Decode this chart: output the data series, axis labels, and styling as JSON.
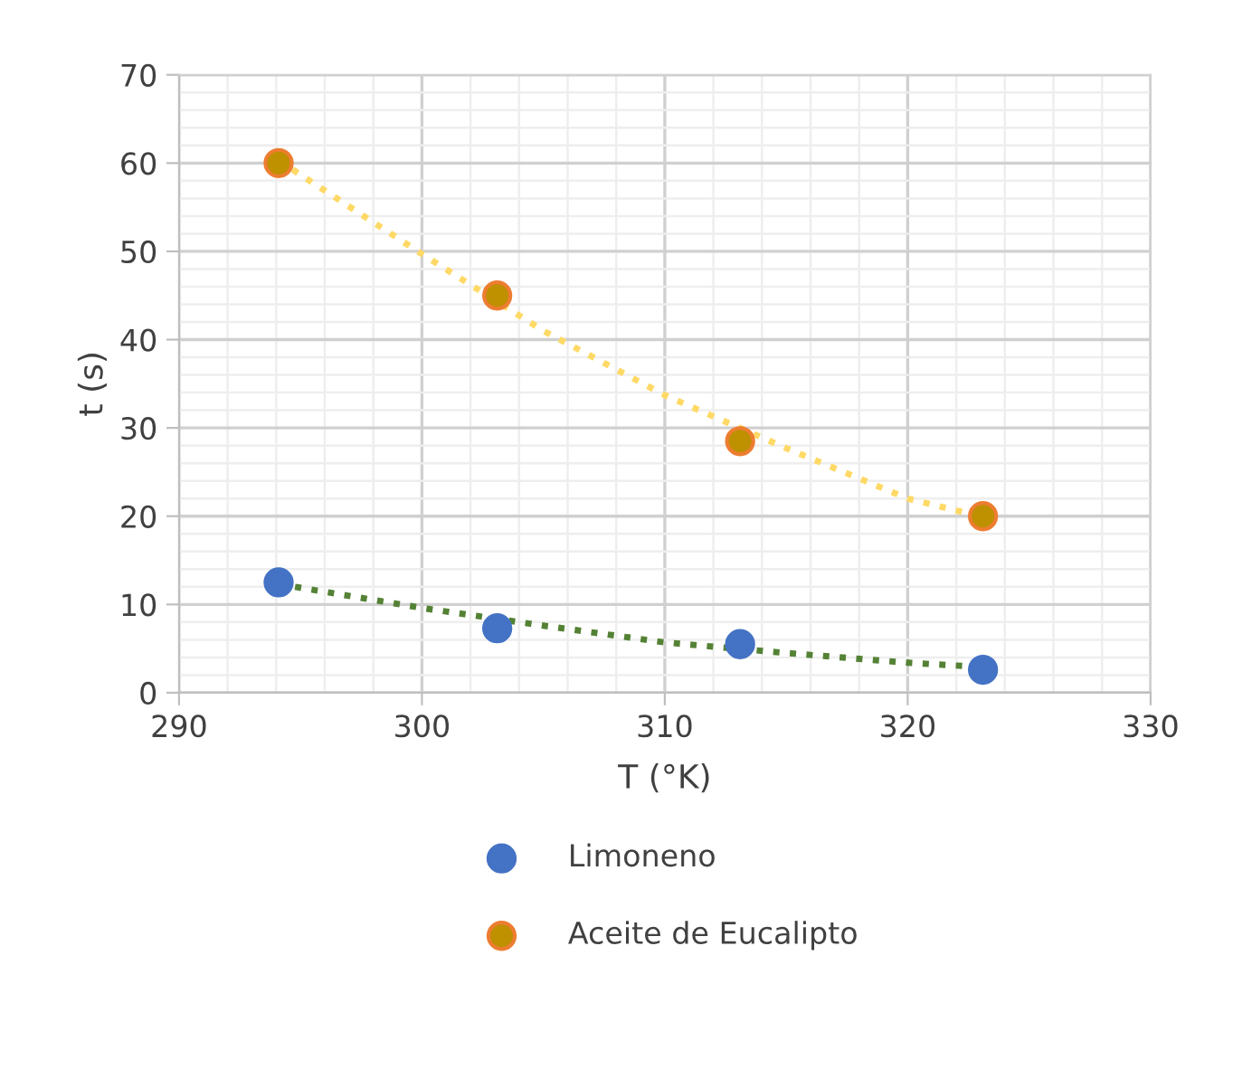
{
  "chart_data": {
    "type": "scatter",
    "xlabel": "T (°K)",
    "ylabel": "t (s)",
    "xlim": [
      290,
      330
    ],
    "xticks": [
      290,
      300,
      310,
      320,
      330
    ],
    "ylim": [
      0,
      70
    ],
    "yticks": [
      0,
      10,
      20,
      30,
      40,
      50,
      60,
      70
    ],
    "grid": true,
    "legend": "bottom",
    "series": [
      {
        "name": "Limoneno",
        "color": "#4472c4",
        "x": [
          294.1,
          303.1,
          313.1,
          323.1
        ],
        "values": [
          12.5,
          7.3,
          5.5,
          2.6
        ]
      },
      {
        "name": "Aceite de Eucalipto",
        "color": "#bf9000",
        "x": [
          294.1,
          303.1,
          313.1,
          323.1
        ],
        "values": [
          60,
          45,
          28.5,
          20
        ]
      },
      {
        "type": "line",
        "line_style": "dotted",
        "color": "#548235",
        "x": [
          294.1,
          300,
          305,
          310,
          315,
          320,
          323.1
        ],
        "values": [
          12.3,
          9.6,
          7.6,
          5.7,
          4.5,
          3.4,
          2.9
        ]
      },
      {
        "type": "line",
        "line_style": "dotted",
        "color": "#ffd966",
        "x": [
          294.1,
          300,
          305,
          310,
          315,
          320,
          323.1
        ],
        "values": [
          60.3,
          49.7,
          41,
          33.7,
          27.7,
          22,
          19.9
        ]
      }
    ]
  }
}
